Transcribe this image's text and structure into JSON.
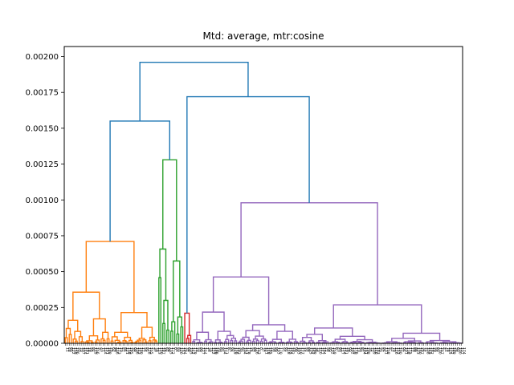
{
  "chart_data": {
    "type": "dendrogram",
    "title": "Mtd: average, mtr:cosine",
    "xlabel": "",
    "ylabel": "",
    "ylim": [
      0,
      0.00207
    ],
    "y_ticks": [
      "0.00000",
      "0.00025",
      "0.00050",
      "0.00075",
      "0.00100",
      "0.00125",
      "0.00150",
      "0.00175",
      "0.00200"
    ],
    "y_tick_values": [
      0,
      0.00025,
      0.0005,
      0.00075,
      0.001,
      0.00125,
      0.0015,
      0.00175,
      0.002
    ],
    "leaf_count": 200,
    "grid": false,
    "clusters": [
      {
        "color": "#ff7f0e",
        "leaf_range": [
          0,
          47
        ],
        "merge_height": 0.00071
      },
      {
        "color": "#2ca02c",
        "leaf_range": [
          47,
          60
        ],
        "merge_height": 0.00128
      },
      {
        "color": "#d62728",
        "leaf_range": [
          60,
          64
        ],
        "merge_height": 0.00021
      },
      {
        "color": "#9467bd",
        "leaf_range": [
          64,
          200
        ],
        "merge_height": 0.00098
      }
    ],
    "above_threshold_color": "#1f77b4",
    "top_merges": [
      {
        "children": [
          "orange",
          "green"
        ],
        "height": 0.00155
      },
      {
        "children": [
          "red",
          "purple"
        ],
        "height": 0.00172
      },
      {
        "children": [
          "left",
          "right"
        ],
        "height": 0.00196
      }
    ]
  }
}
